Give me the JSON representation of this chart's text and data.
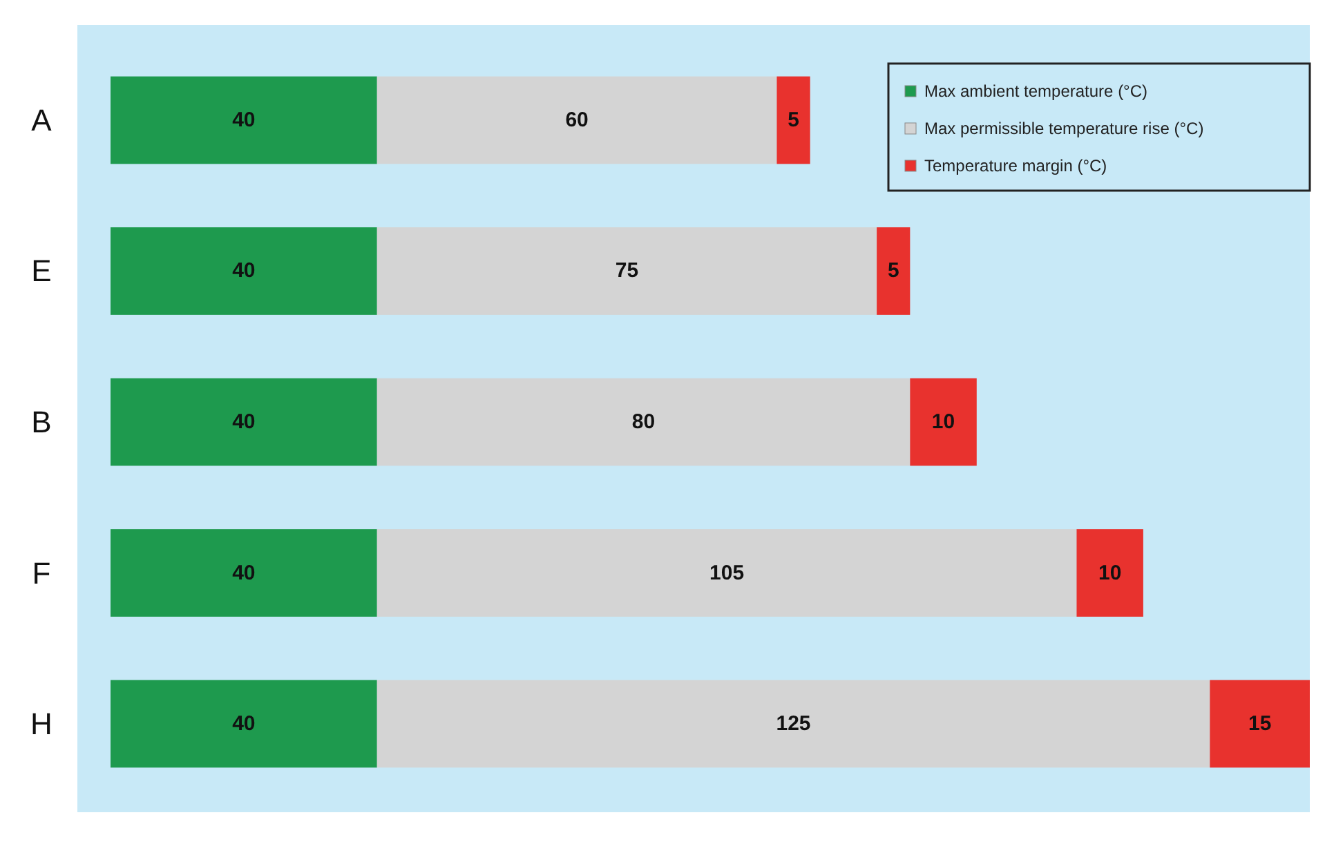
{
  "chart_data": {
    "type": "bar",
    "orientation": "horizontal",
    "stacked": true,
    "data_labels": true,
    "legend": "top right",
    "categories": [
      "A",
      "E",
      "B",
      "F",
      "H"
    ],
    "series": [
      {
        "name": "Max ambient temperature (°C)",
        "color": "#1e9a4e",
        "values": [
          40,
          40,
          40,
          40,
          40
        ]
      },
      {
        "name": "Max permissible temperature rise (°C)",
        "color": "#d4d4d4",
        "values": [
          60,
          75,
          80,
          105,
          125
        ]
      },
      {
        "name": "Temperature margin (°C)",
        "color": "#e8322e",
        "values": [
          5,
          5,
          10,
          10,
          15
        ]
      }
    ]
  }
}
